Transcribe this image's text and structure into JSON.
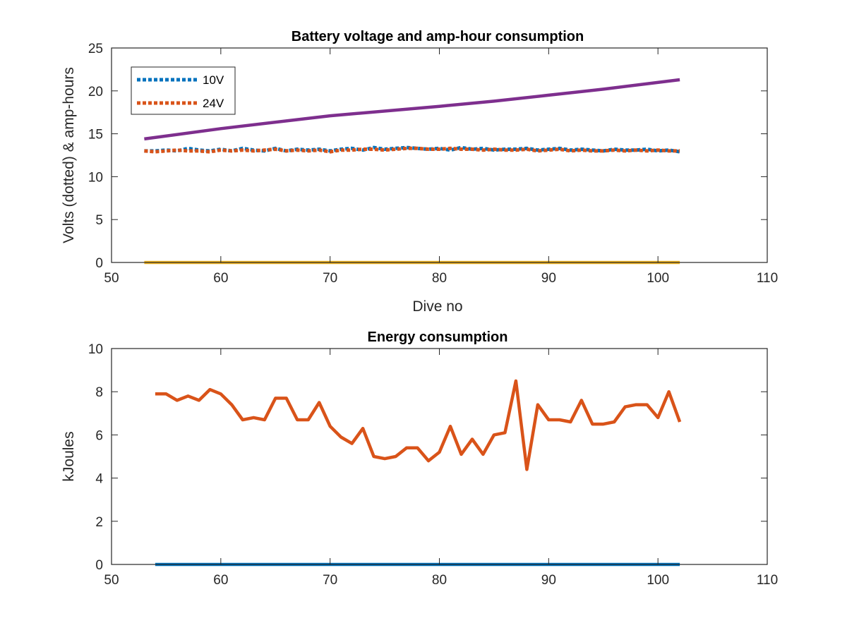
{
  "chart_data": [
    {
      "type": "line",
      "title": "Battery voltage and amp-hour consumption",
      "xlabel": "Dive no",
      "ylabel": "Volts (dotted) & amp-hours",
      "xlim": [
        50,
        110
      ],
      "ylim": [
        0,
        25
      ],
      "xticks": [
        50,
        60,
        70,
        80,
        90,
        100,
        110
      ],
      "yticks": [
        0,
        5,
        10,
        15,
        20,
        25
      ],
      "grid": false,
      "legend": "top-left",
      "series": [
        {
          "name": "10V",
          "style": "dotted",
          "color": "#0072BD",
          "x": [
            53,
            54,
            55,
            56,
            57,
            58,
            59,
            60,
            61,
            62,
            63,
            64,
            65,
            66,
            67,
            68,
            69,
            70,
            71,
            72,
            73,
            74,
            75,
            76,
            77,
            78,
            79,
            80,
            81,
            82,
            83,
            84,
            85,
            86,
            87,
            88,
            89,
            90,
            91,
            92,
            93,
            94,
            95,
            96,
            97,
            98,
            99,
            100,
            101,
            102
          ],
          "values": [
            13.0,
            13.0,
            13.1,
            13.0,
            13.3,
            13.1,
            13.0,
            13.2,
            13.0,
            13.3,
            13.1,
            13.0,
            13.3,
            13.0,
            13.2,
            13.1,
            13.2,
            13.0,
            13.2,
            13.3,
            13.1,
            13.4,
            13.2,
            13.3,
            13.4,
            13.3,
            13.2,
            13.3,
            13.1,
            13.4,
            13.2,
            13.3,
            13.1,
            13.2,
            13.2,
            13.3,
            13.1,
            13.2,
            13.3,
            13.1,
            13.2,
            13.1,
            13.0,
            13.2,
            13.1,
            13.1,
            13.2,
            13.0,
            13.1,
            12.9
          ]
        },
        {
          "name": "24V",
          "style": "dotted",
          "color": "#D95319",
          "x": [
            53,
            54,
            55,
            56,
            57,
            58,
            59,
            60,
            61,
            62,
            63,
            64,
            65,
            66,
            67,
            68,
            69,
            70,
            71,
            72,
            73,
            74,
            75,
            76,
            77,
            78,
            79,
            80,
            81,
            82,
            83,
            84,
            85,
            86,
            87,
            88,
            89,
            90,
            91,
            92,
            93,
            94,
            95,
            96,
            97,
            98,
            99,
            100,
            101,
            102
          ],
          "values": [
            13.0,
            12.9,
            13.0,
            13.1,
            13.0,
            13.0,
            12.9,
            13.1,
            13.0,
            13.1,
            13.0,
            13.1,
            13.2,
            13.0,
            13.1,
            13.0,
            13.1,
            12.9,
            13.1,
            13.1,
            13.2,
            13.2,
            13.1,
            13.2,
            13.3,
            13.3,
            13.2,
            13.2,
            13.3,
            13.2,
            13.2,
            13.1,
            13.2,
            13.1,
            13.1,
            13.2,
            13.0,
            13.1,
            13.2,
            13.0,
            13.1,
            13.0,
            13.0,
            13.1,
            13.0,
            13.1,
            13.0,
            13.1,
            13.0,
            13.0
          ]
        },
        {
          "style": "solid",
          "color": "#7E2F8E",
          "x": [
            53,
            60,
            70,
            80,
            85,
            90,
            95,
            102
          ],
          "values": [
            14.4,
            15.6,
            17.1,
            18.2,
            18.8,
            19.5,
            20.2,
            21.3
          ]
        },
        {
          "style": "solid",
          "color": "#EDB120",
          "x": [
            53,
            102
          ],
          "values": [
            0,
            0
          ]
        }
      ]
    },
    {
      "type": "line",
      "title": "Energy consumption",
      "xlabel": "",
      "ylabel": "kJoules",
      "xlim": [
        50,
        110
      ],
      "ylim": [
        0,
        10
      ],
      "xticks": [
        50,
        60,
        70,
        80,
        90,
        100,
        110
      ],
      "yticks": [
        0,
        2,
        4,
        6,
        8,
        10
      ],
      "grid": false,
      "series": [
        {
          "style": "solid",
          "color": "#0072BD",
          "x": [
            54,
            102
          ],
          "values": [
            0,
            0
          ]
        },
        {
          "style": "solid",
          "color": "#D95319",
          "x": [
            54,
            55,
            56,
            57,
            58,
            59,
            60,
            61,
            62,
            63,
            64,
            65,
            66,
            67,
            68,
            69,
            70,
            71,
            72,
            73,
            74,
            75,
            76,
            77,
            78,
            79,
            80,
            81,
            82,
            83,
            84,
            85,
            86,
            87,
            88,
            89,
            90,
            91,
            92,
            93,
            94,
            95,
            96,
            97,
            98,
            99,
            100,
            101,
            102
          ],
          "values": [
            7.9,
            7.9,
            7.6,
            7.8,
            7.6,
            8.1,
            7.9,
            7.4,
            6.7,
            6.8,
            6.7,
            7.7,
            7.7,
            6.7,
            6.7,
            7.5,
            6.4,
            5.9,
            5.6,
            6.3,
            5.0,
            4.9,
            5.0,
            5.4,
            5.4,
            4.8,
            5.2,
            6.4,
            5.1,
            5.8,
            5.1,
            6.0,
            6.1,
            8.5,
            4.4,
            7.4,
            6.7,
            6.7,
            6.6,
            7.6,
            6.5,
            6.5,
            6.6,
            7.3,
            7.4,
            7.4,
            6.8,
            8.0,
            6.6
          ]
        }
      ]
    }
  ]
}
